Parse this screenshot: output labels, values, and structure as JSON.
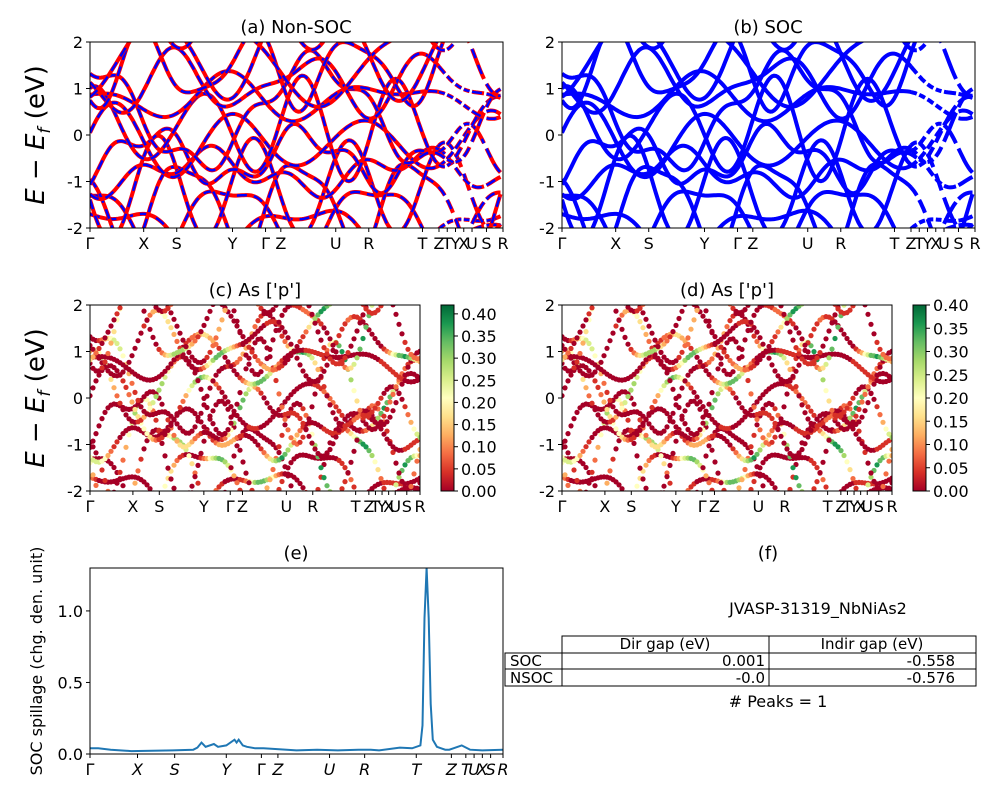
{
  "chart_data": [
    {
      "id": "a",
      "type": "line",
      "title": "(a) Non-SOC",
      "ylabel": "E − E_f (eV)",
      "ylim": [
        -2,
        2
      ],
      "yticks": [
        "-2",
        "-1",
        "0",
        "1",
        "2"
      ],
      "kpath": [
        "Γ",
        "X",
        "S",
        "Y",
        "Γ",
        "Z",
        "U",
        "R",
        "T",
        "Z",
        "T",
        "Y",
        "X",
        "U",
        "S",
        "R"
      ],
      "series": [
        {
          "name": "",
          "color": "#ff0000",
          "style": "solid"
        },
        {
          "name": "",
          "color": "#0000ff",
          "style": "dashed"
        }
      ]
    },
    {
      "id": "b",
      "type": "line",
      "title": "(b) SOC",
      "ylim": [
        -2,
        2
      ],
      "yticks": [
        "-2",
        "-1",
        "0",
        "1",
        "2"
      ],
      "kpath": [
        "Γ",
        "X",
        "S",
        "Y",
        "Γ",
        "Z",
        "U",
        "R",
        "T",
        "Z",
        "T",
        "Y",
        "X",
        "U",
        "S",
        "R"
      ],
      "series": [
        {
          "name": "",
          "color": "#0000ff",
          "style": "solid"
        }
      ]
    },
    {
      "id": "c",
      "type": "scatter",
      "title": "(c)  As ['p']",
      "ylabel": "E − E_f (eV)",
      "ylim": [
        -2,
        2
      ],
      "yticks": [
        "-2",
        "-1",
        "0",
        "1",
        "2"
      ],
      "kpath": [
        "Γ",
        "X",
        "S",
        "Y",
        "Γ",
        "Z",
        "U",
        "R",
        "T",
        "Z",
        "T",
        "Y",
        "X",
        "U",
        "S",
        "R"
      ],
      "colorbar": {
        "min": 0.0,
        "max": 0.42,
        "ticks": [
          "0.00",
          "0.05",
          "0.10",
          "0.15",
          "0.20",
          "0.25",
          "0.30",
          "0.35",
          "0.40"
        ],
        "colormap": "RdYlGn"
      }
    },
    {
      "id": "d",
      "type": "scatter",
      "title": "(d) As ['p']",
      "ylim": [
        -2,
        2
      ],
      "yticks": [
        "-2",
        "-1",
        "0",
        "1",
        "2"
      ],
      "kpath": [
        "Γ",
        "X",
        "S",
        "Y",
        "Γ",
        "Z",
        "U",
        "R",
        "T",
        "Z",
        "T",
        "Y",
        "X",
        "U",
        "S",
        "R"
      ],
      "colorbar": {
        "min": 0.0,
        "max": 0.4,
        "ticks": [
          "0.00",
          "0.05",
          "0.10",
          "0.15",
          "0.20",
          "0.25",
          "0.30",
          "0.35",
          "0.40"
        ],
        "colormap": "RdYlGn"
      }
    },
    {
      "id": "e",
      "type": "line",
      "title": "(e)",
      "ylabel": "SOC spillage (chg. den. unit)",
      "ylim": [
        0,
        1.3
      ],
      "yticks": [
        "0.0",
        "0.5",
        "1.0"
      ],
      "kpath": [
        "Γ",
        "X",
        "S",
        "Y",
        "Γ",
        "Z",
        "U",
        "R",
        "T",
        "Z",
        "T",
        "U",
        "X",
        "S",
        "R"
      ],
      "series": [
        {
          "name": "",
          "color": "#1f77b4",
          "x": [
            0.0,
            0.02,
            0.05,
            0.1,
            0.2,
            0.25,
            0.26,
            0.27,
            0.28,
            0.3,
            0.31,
            0.33,
            0.35,
            0.355,
            0.36,
            0.37,
            0.38,
            0.4,
            0.42,
            0.5,
            0.55,
            0.6,
            0.65,
            0.68,
            0.7,
            0.75,
            0.78,
            0.8,
            0.8,
            0.805,
            0.81,
            0.815,
            0.82,
            0.825,
            0.83,
            0.84,
            0.85,
            0.86,
            0.87,
            0.88,
            0.9,
            0.92,
            0.95,
            1.0
          ],
          "y": [
            0.04,
            0.04,
            0.03,
            0.02,
            0.025,
            0.03,
            0.045,
            0.08,
            0.05,
            0.07,
            0.05,
            0.06,
            0.1,
            0.08,
            0.1,
            0.06,
            0.05,
            0.04,
            0.04,
            0.025,
            0.03,
            0.025,
            0.03,
            0.03,
            0.025,
            0.045,
            0.04,
            0.06,
            0.06,
            0.2,
            0.95,
            1.3,
            0.95,
            0.35,
            0.1,
            0.05,
            0.04,
            0.03,
            0.03,
            0.04,
            0.06,
            0.03,
            0.025,
            0.03
          ]
        }
      ]
    }
  ],
  "panel_f": {
    "title": "(f)",
    "material": "JVASP-31319_NbNiAs2",
    "headers": [
      "Dir gap (eV)",
      "Indir gap (eV)"
    ],
    "rows": [
      {
        "label": "SOC",
        "dir": "0.001",
        "indir": "-0.558"
      },
      {
        "label": "NSOC",
        "dir": "-0.0",
        "indir": "-0.576"
      }
    ],
    "peaks": "# Peaks = 1"
  }
}
